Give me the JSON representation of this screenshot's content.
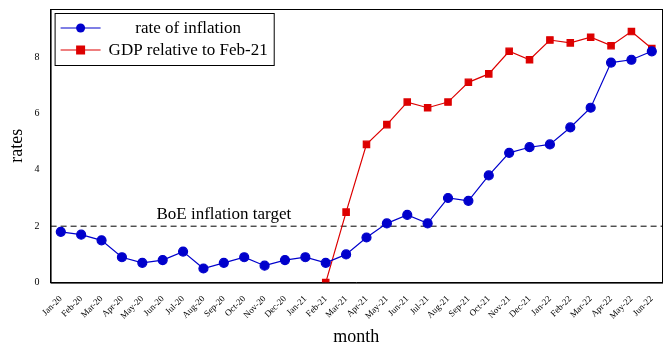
{
  "chart_data": {
    "type": "line",
    "x_label": "month",
    "y_label": "rates",
    "categories": [
      "Jan-20",
      "Feb-20",
      "Mar-20",
      "Apr-20",
      "May-20",
      "Jun-20",
      "Jul-20",
      "Aug-20",
      "Sep-20",
      "Oct-20",
      "Nov-20",
      "Dec-20",
      "Jan-21",
      "Feb-21",
      "Mar-21",
      "Apr-21",
      "May-21",
      "Jun-21",
      "Jul-21",
      "Aug-21",
      "Sep-21",
      "Oct-21",
      "Nov-21",
      "Dec-21",
      "Jan-22",
      "Feb-22",
      "Mar-22",
      "Apr-22",
      "May-22",
      "Jun-22"
    ],
    "series": [
      {
        "name": "rate of inflation",
        "color": "#0000cc",
        "marker": "circle",
        "line_style": "solid",
        "values": [
          1.8,
          1.7,
          1.5,
          0.9,
          0.7,
          0.8,
          1.1,
          0.5,
          0.7,
          0.9,
          0.6,
          0.8,
          0.9,
          0.7,
          1.0,
          1.6,
          2.1,
          2.4,
          2.1,
          3.0,
          2.9,
          3.8,
          4.6,
          4.8,
          4.9,
          5.5,
          6.2,
          7.8,
          7.9,
          8.2
        ]
      },
      {
        "name": "GDP relative to Feb-21",
        "color": "#dd0000",
        "marker": "square",
        "line_style": "solid",
        "values": [
          null,
          null,
          null,
          null,
          null,
          null,
          null,
          null,
          null,
          null,
          null,
          null,
          null,
          0,
          2.5,
          4.9,
          5.6,
          6.4,
          6.2,
          6.4,
          7.1,
          7.4,
          8.2,
          7.9,
          8.6,
          8.5,
          8.7,
          8.4,
          8.9,
          8.3
        ]
      }
    ],
    "annotations": [
      {
        "text": "BoE inflation target",
        "y": 2,
        "x": "Sep-20",
        "line_style": "dashed"
      }
    ],
    "ylim": [
      0,
      9.7
    ],
    "yticks": [
      0,
      2,
      4,
      6,
      8
    ],
    "grid": false,
    "legend": "upper left"
  }
}
